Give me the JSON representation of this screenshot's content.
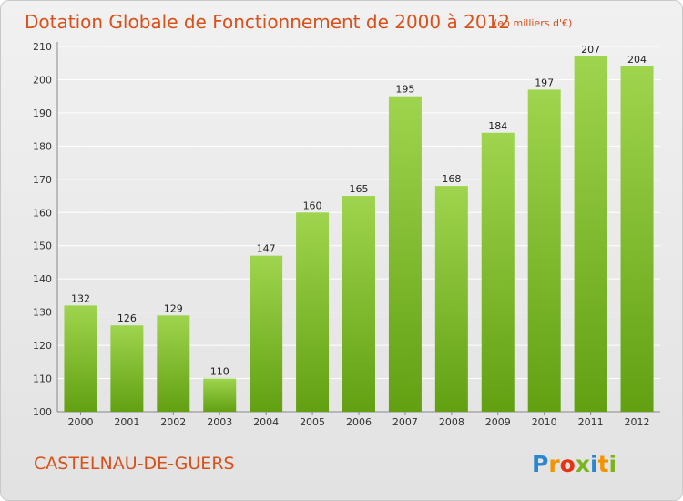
{
  "chart_data": {
    "type": "bar",
    "title": "Dotation Globale de Fonctionnement de 2000 à 2012",
    "subtitle": "(en milliers d'€)",
    "xlabel": "",
    "ylabel": "",
    "categories": [
      "2000",
      "2001",
      "2002",
      "2003",
      "2004",
      "2005",
      "2006",
      "2007",
      "2008",
      "2009",
      "2010",
      "2011",
      "2012"
    ],
    "values": [
      132,
      126,
      129,
      110,
      147,
      160,
      165,
      195,
      168,
      184,
      197,
      207,
      204
    ],
    "ylim": [
      100,
      210
    ],
    "yticks": [
      100,
      110,
      120,
      130,
      140,
      150,
      160,
      170,
      180,
      190,
      200,
      210
    ],
    "grid": true,
    "legend": "none",
    "colors": {
      "bar_top": "#9fd54e",
      "bar_bottom": "#62a012",
      "accent": "#d8501a",
      "grid": "#ffffff"
    }
  },
  "footer": {
    "location": "CASTELNAU-DE-GUERS",
    "logo_letters": [
      {
        "ch": "P",
        "color": "#2b86d1"
      },
      {
        "ch": "r",
        "color": "#f29400"
      },
      {
        "ch": "o",
        "color": "#e63312"
      },
      {
        "ch": "x",
        "color": "#7ab51d"
      },
      {
        "ch": "i",
        "color": "#2b86d1"
      },
      {
        "ch": "t",
        "color": "#f29400"
      },
      {
        "ch": "i",
        "color": "#7ab51d"
      }
    ]
  }
}
